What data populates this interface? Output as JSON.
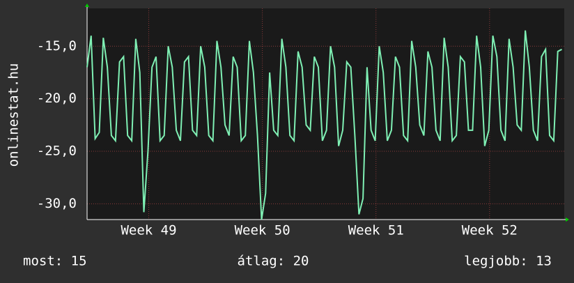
{
  "chart_data": {
    "type": "line",
    "y_axis_label": "onlinestat.hu",
    "xlim": [
      0,
      29.4
    ],
    "xticks": [
      {
        "value": 3.8,
        "label": "Week 49"
      },
      {
        "value": 10.8,
        "label": "Week 50"
      },
      {
        "value": 17.8,
        "label": "Week 51"
      },
      {
        "value": 24.8,
        "label": "Week 52"
      }
    ],
    "ylim": [
      -31.5,
      -11.4
    ],
    "yticks": [
      {
        "value": -30,
        "label": "-30,0"
      },
      {
        "value": -25,
        "label": "-25,0"
      },
      {
        "value": -20,
        "label": "-20,0"
      },
      {
        "value": -15,
        "label": "-15,0"
      }
    ],
    "grid": true,
    "series": [
      {
        "color": "#7ff0b4",
        "x": [
          0,
          0.25,
          0.5,
          0.75,
          1,
          1.25,
          1.5,
          1.75,
          2,
          2.25,
          2.5,
          2.75,
          3,
          3.25,
          3.5,
          3.75,
          4,
          4.25,
          4.5,
          4.75,
          5,
          5.25,
          5.5,
          5.75,
          6,
          6.25,
          6.5,
          6.75,
          7,
          7.25,
          7.5,
          7.75,
          8,
          8.25,
          8.5,
          8.75,
          9,
          9.25,
          9.5,
          9.75,
          10,
          10.25,
          10.5,
          10.75,
          11,
          11.25,
          11.5,
          11.75,
          12,
          12.25,
          12.5,
          12.75,
          13,
          13.25,
          13.5,
          13.75,
          14,
          14.25,
          14.5,
          14.75,
          15,
          15.25,
          15.5,
          15.75,
          16,
          16.25,
          16.5,
          16.75,
          17,
          17.25,
          17.5,
          17.75,
          18,
          18.25,
          18.5,
          18.75,
          19,
          19.25,
          19.5,
          19.75,
          20,
          20.25,
          20.5,
          20.75,
          21,
          21.25,
          21.5,
          21.75,
          22,
          22.25,
          22.5,
          22.75,
          23,
          23.25,
          23.5,
          23.75,
          24,
          24.25,
          24.5,
          24.75,
          25,
          25.25,
          25.5,
          25.75,
          26,
          26.25,
          26.5,
          26.75,
          27,
          27.25,
          27.5,
          27.75,
          28,
          28.25,
          28.5,
          28.75,
          29,
          29.25
        ],
        "values": [
          -17,
          -14,
          -23.8,
          -23.2,
          -14.2,
          -17,
          -23.5,
          -24,
          -16.5,
          -16,
          -23.5,
          -24,
          -14.3,
          -17.5,
          -30.8,
          -25,
          -17,
          -16,
          -24,
          -23.5,
          -15,
          -17,
          -23,
          -24,
          -16.5,
          -16,
          -23,
          -23.5,
          -15,
          -17,
          -23.5,
          -24,
          -14.5,
          -17,
          -22.5,
          -23.5,
          -16,
          -17,
          -24,
          -23.5,
          -14.5,
          -17.5,
          -23.5,
          -31.5,
          -29,
          -17.5,
          -23,
          -23.5,
          -14.3,
          -17,
          -23.5,
          -24,
          -15.5,
          -17,
          -22.5,
          -23,
          -16,
          -17,
          -24,
          -23,
          -15,
          -17,
          -24.5,
          -23,
          -16.5,
          -17,
          -23.5,
          -31,
          -29.5,
          -17,
          -23,
          -24,
          -15,
          -17.5,
          -24,
          -23,
          -16,
          -17,
          -23.5,
          -24,
          -14.5,
          -17,
          -22.5,
          -23.5,
          -15.5,
          -17,
          -23,
          -24,
          -14.2,
          -17,
          -24,
          -23.5,
          -16,
          -16.5,
          -23,
          -23,
          -14,
          -17,
          -24.5,
          -23,
          -14,
          -16,
          -23,
          -24,
          -14.3,
          -17,
          -22.5,
          -23,
          -13.5,
          -17,
          -23,
          -24,
          -16,
          -15.3,
          -23.5,
          -24,
          -15.5,
          -15.3
        ]
      }
    ],
    "footer": [
      "most: 15",
      "átlag: 20",
      "legjobb: 13"
    ]
  }
}
